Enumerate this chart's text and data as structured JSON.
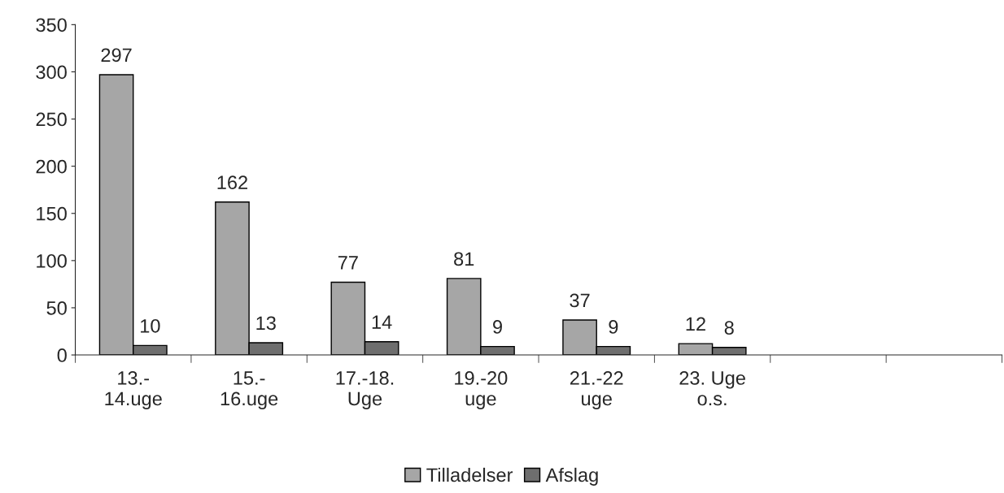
{
  "chart_data": {
    "type": "bar",
    "categories": [
      "13.-\n14.uge",
      "15.-\n16.uge",
      "17.-18.\nUge",
      "19.-20\nuge",
      "21.-22\nuge",
      "23. Uge\no.s.",
      null,
      null
    ],
    "series": [
      {
        "name": "Tilladelser",
        "color": "#a6a6a6",
        "values": [
          297,
          162,
          77,
          81,
          37,
          12,
          null,
          null
        ]
      },
      {
        "name": "Afslag",
        "color": "#6e6e6e",
        "values": [
          10,
          13,
          14,
          9,
          9,
          8,
          null,
          null
        ]
      }
    ],
    "ylim": [
      0,
      350
    ],
    "yticks": [
      0,
      50,
      100,
      150,
      200,
      250,
      300,
      350
    ],
    "data_labels": true,
    "grid": false,
    "legend": "bottom"
  }
}
